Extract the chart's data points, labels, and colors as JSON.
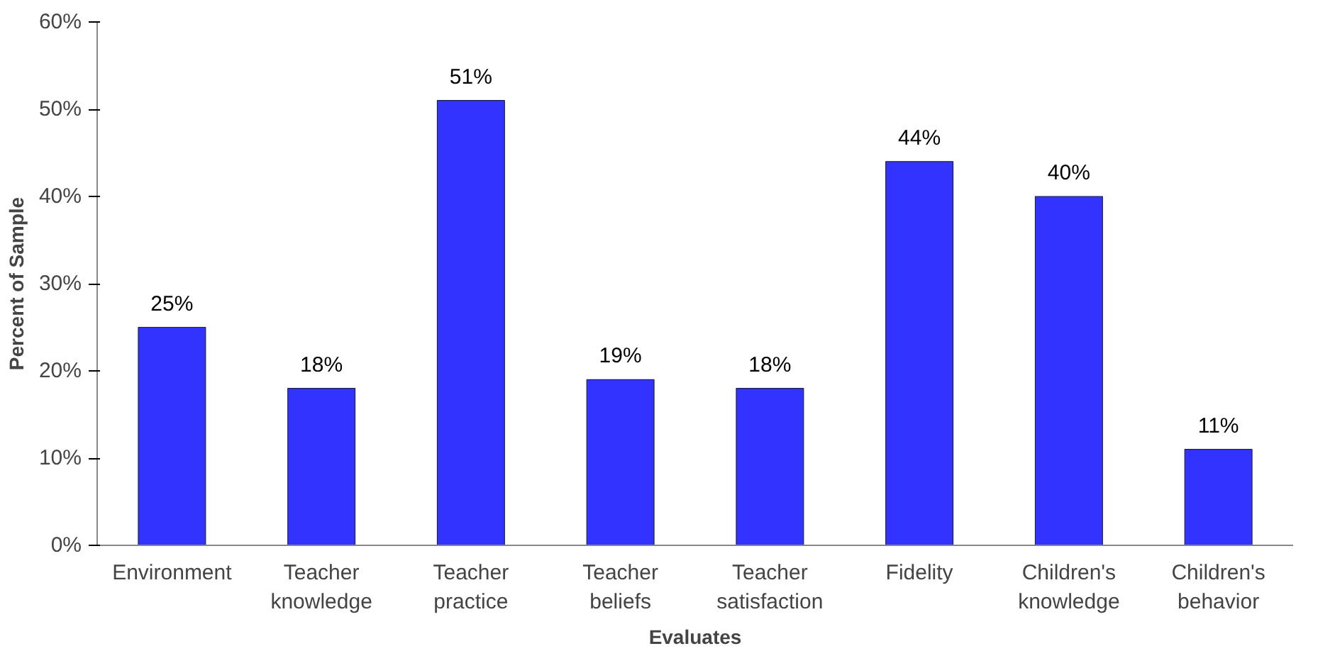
{
  "chart_data": {
    "type": "bar",
    "xlabel": "Evaluates",
    "ylabel": "Percent of Sample",
    "categories": [
      "Environment",
      "Teacher\nknowledge",
      "Teacher\npractice",
      "Teacher\nbeliefs",
      "Teacher\nsatisfaction",
      "Fidelity",
      "Children's\nknowledge",
      "Children's\nbehavior"
    ],
    "values": [
      25,
      18,
      51,
      19,
      18,
      44,
      40,
      11
    ],
    "value_labels": [
      "25%",
      "18%",
      "51%",
      "19%",
      "18%",
      "44%",
      "40%",
      "11%"
    ],
    "color": "#3333ff",
    "ylim": [
      0,
      60
    ],
    "yticks": [
      {
        "value": 0,
        "label": "0%"
      },
      {
        "value": 10,
        "label": "10%"
      },
      {
        "value": 20,
        "label": "20%"
      },
      {
        "value": 30,
        "label": "30%"
      },
      {
        "value": 40,
        "label": "40%"
      },
      {
        "value": 50,
        "label": "50%"
      },
      {
        "value": 60,
        "label": "60%"
      }
    ],
    "grid": false
  }
}
